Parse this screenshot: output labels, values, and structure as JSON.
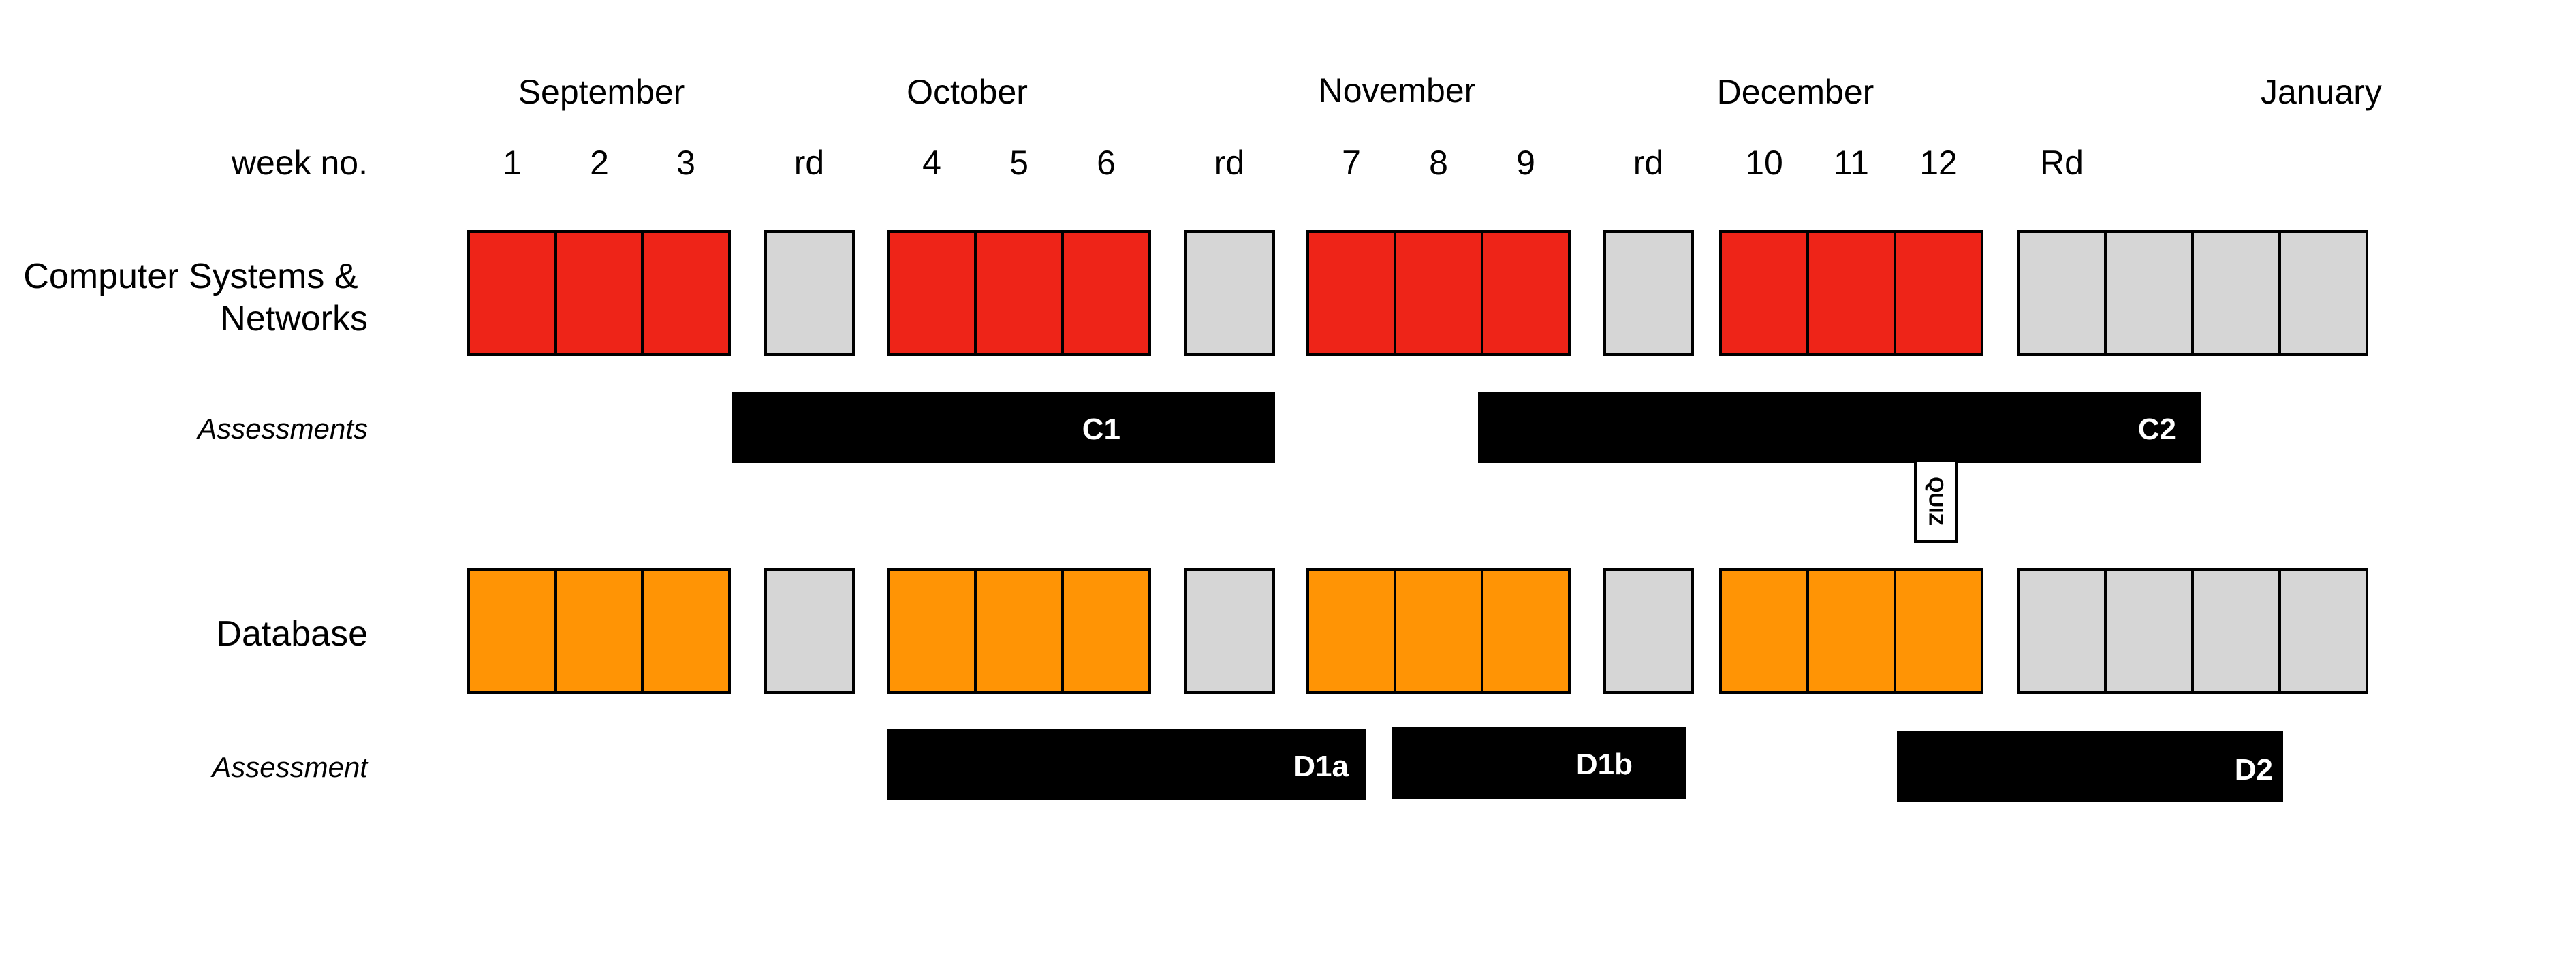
{
  "colors": {
    "csn_teaching": "#ee2418",
    "db_teaching": "#ff9405",
    "break": "#d6d6d6",
    "assessment_bar": "#000000"
  },
  "months": [
    "September",
    "October",
    "November",
    "December",
    "January"
  ],
  "week_header": "week no.",
  "weeks": [
    "1",
    "2",
    "3",
    "rd",
    "4",
    "5",
    "6",
    "rd",
    "7",
    "8",
    "9",
    "rd",
    "10",
    "11",
    "12",
    "Rd"
  ],
  "rows": [
    {
      "label_lines": [
        "Computer Systems &",
        "Networks"
      ],
      "cells": [
        "t",
        "t",
        "t",
        "b",
        "t",
        "t",
        "t",
        "b",
        "t",
        "t",
        "t",
        "b",
        "t",
        "t",
        "t",
        "b",
        "b",
        "b",
        "b"
      ],
      "assessment_label": "Assessments",
      "bars": [
        {
          "label": "C1",
          "start_week": "3",
          "end_week": "rd"
        },
        {
          "label": "C2",
          "start_week": "9",
          "end_week": "January"
        }
      ],
      "quiz": {
        "label": "QUIZ",
        "week": "12"
      }
    },
    {
      "label_lines": [
        "Database"
      ],
      "cells": [
        "t",
        "t",
        "t",
        "b",
        "t",
        "t",
        "t",
        "b",
        "t",
        "t",
        "t",
        "b",
        "t",
        "t",
        "t",
        "b",
        "b",
        "b",
        "b"
      ],
      "assessment_label": "Assessment",
      "bars": [
        {
          "label": "D1a",
          "start_week": "4",
          "end_week": "rd"
        },
        {
          "label": "D1b",
          "start_week": "8",
          "end_week": "rd"
        },
        {
          "label": "D2",
          "start_week": "12",
          "end_week": "January"
        }
      ]
    }
  ]
}
